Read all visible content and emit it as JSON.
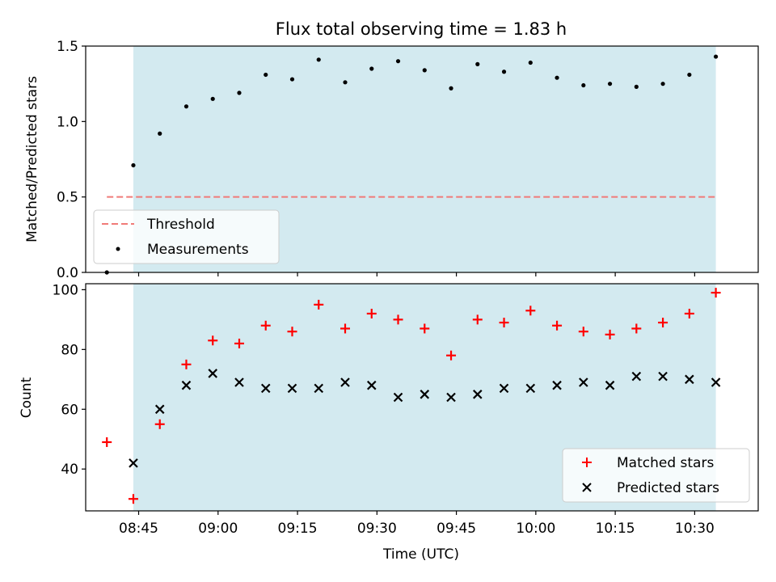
{
  "chart_data": [
    {
      "type": "scatter",
      "title": "Flux total observing time = 1.83 h",
      "xlabel": "",
      "ylabel": "Matched/Predicted stars",
      "ylim": [
        0,
        1.5
      ],
      "yticks": [
        0.0,
        0.5,
        1.0,
        1.5
      ],
      "ytick_labels": [
        "0.0",
        "0.5",
        "1.0",
        "1.5"
      ],
      "shaded_span": [
        "08:44",
        "10:34"
      ],
      "legend_position": "lower-left",
      "threshold": {
        "name": "Threshold",
        "value": 0.5,
        "x_range": [
          "08:39",
          "10:34"
        ]
      },
      "series": [
        {
          "name": "Measurements",
          "x": [
            "08:39",
            "08:44",
            "08:49",
            "08:54",
            "08:59",
            "09:04",
            "09:09",
            "09:14",
            "09:19",
            "09:24",
            "09:29",
            "09:34",
            "09:39",
            "09:44",
            "09:49",
            "09:54",
            "09:59",
            "10:04",
            "10:09",
            "10:14",
            "10:19",
            "10:24",
            "10:29",
            "10:34"
          ],
          "values": [
            0.0,
            0.71,
            0.92,
            1.1,
            1.15,
            1.19,
            1.31,
            1.28,
            1.41,
            1.26,
            1.35,
            1.4,
            1.34,
            1.22,
            1.38,
            1.33,
            1.39,
            1.29,
            1.24,
            1.25,
            1.23,
            1.25,
            1.31,
            1.43
          ]
        }
      ]
    },
    {
      "type": "scatter",
      "title": "",
      "xlabel": "Time (UTC)",
      "ylabel": "Count",
      "ylim": [
        26,
        102
      ],
      "yticks": [
        40,
        60,
        80,
        100
      ],
      "ytick_labels": [
        "40",
        "60",
        "80",
        "100"
      ],
      "xlim": [
        "08:35",
        "10:42"
      ],
      "xticks": [
        "08:45",
        "09:00",
        "09:15",
        "09:30",
        "09:45",
        "10:00",
        "10:15",
        "10:30"
      ],
      "shaded_span": [
        "08:44",
        "10:34"
      ],
      "legend_position": "lower-right",
      "series": [
        {
          "name": "Matched stars",
          "x": [
            "08:39",
            "08:44",
            "08:49",
            "08:54",
            "08:59",
            "09:04",
            "09:09",
            "09:14",
            "09:19",
            "09:24",
            "09:29",
            "09:34",
            "09:39",
            "09:44",
            "09:49",
            "09:54",
            "09:59",
            "10:04",
            "10:09",
            "10:14",
            "10:19",
            "10:24",
            "10:29",
            "10:34"
          ],
          "values": [
            49,
            30,
            55,
            75,
            83,
            82,
            88,
            86,
            95,
            87,
            92,
            90,
            87,
            78,
            90,
            89,
            93,
            88,
            86,
            85,
            87,
            89,
            92,
            99
          ]
        },
        {
          "name": "Predicted stars",
          "x": [
            "08:44",
            "08:49",
            "08:54",
            "08:59",
            "09:04",
            "09:09",
            "09:14",
            "09:19",
            "09:24",
            "09:29",
            "09:34",
            "09:39",
            "09:44",
            "09:49",
            "09:54",
            "09:59",
            "10:04",
            "10:09",
            "10:14",
            "10:19",
            "10:24",
            "10:29",
            "10:34"
          ],
          "values": [
            42,
            60,
            68,
            72,
            69,
            67,
            67,
            67,
            69,
            68,
            64,
            65,
            64,
            65,
            67,
            67,
            68,
            69,
            68,
            71,
            71,
            70,
            69
          ]
        }
      ]
    }
  ],
  "colors": {
    "shade": "#d3eaf0",
    "shade_edge": "#b9dbe5",
    "threshold": "#f07b78",
    "measurement": "#000000",
    "matched": "#ff0000",
    "predicted": "#000000"
  }
}
